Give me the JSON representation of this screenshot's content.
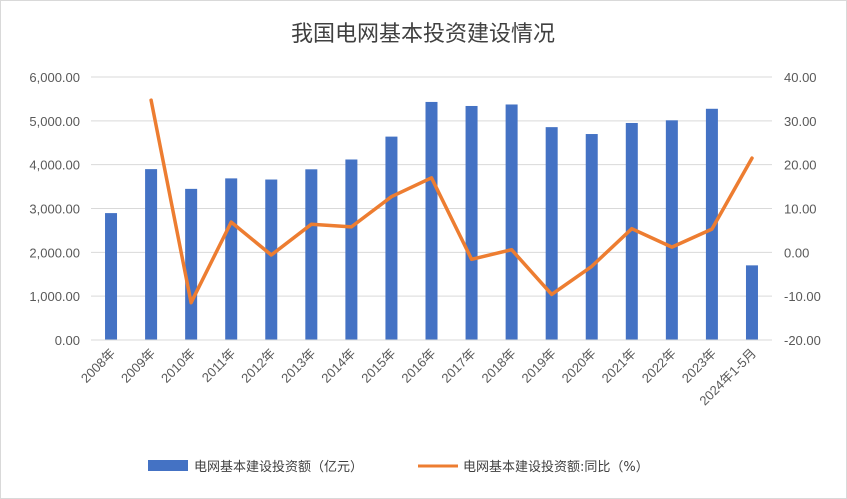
{
  "chart_data": {
    "type": "bar+line",
    "title": "我国电网基本投资建设情况",
    "categories": [
      "2008年",
      "2009年",
      "2010年",
      "2011年",
      "2012年",
      "2013年",
      "2014年",
      "2015年",
      "2016年",
      "2017年",
      "2018年",
      "2019年",
      "2020年",
      "2021年",
      "2022年",
      "2023年",
      "2024年1-5月"
    ],
    "series": [
      {
        "name": "电网基本建设投资额（亿元）",
        "type": "bar",
        "axis": "left",
        "color": "#4472C4",
        "values": [
          2895,
          3898,
          3448,
          3687,
          3661,
          3894,
          4118,
          4640,
          5431,
          5339,
          5373,
          4856,
          4699,
          4951,
          5012,
          5275,
          1703
        ]
      },
      {
        "name": "电网基本建设投资额:同比（%）",
        "type": "line",
        "axis": "right",
        "color": "#ED7D31",
        "values": [
          null,
          34.7,
          -11.5,
          6.9,
          -0.6,
          6.4,
          5.8,
          12.7,
          17.0,
          -1.6,
          0.6,
          -9.6,
          -3.2,
          5.4,
          1.2,
          5.3,
          21.5
        ]
      }
    ],
    "left_axis": {
      "ylim": [
        0,
        6000
      ],
      "ticks": [
        0,
        1000,
        2000,
        3000,
        4000,
        5000,
        6000
      ],
      "tick_labels": [
        "0.00",
        "1,000.00",
        "2,000.00",
        "3,000.00",
        "4,000.00",
        "5,000.00",
        "6,000.00"
      ]
    },
    "right_axis": {
      "ylim": [
        -20,
        40
      ],
      "ticks": [
        -20,
        -10,
        0,
        10,
        20,
        30,
        40
      ],
      "tick_labels": [
        "-20.00",
        "-10.00",
        "0.00",
        "10.00",
        "20.00",
        "30.00",
        "40.00"
      ]
    },
    "grid": true,
    "legend": "bottom"
  }
}
